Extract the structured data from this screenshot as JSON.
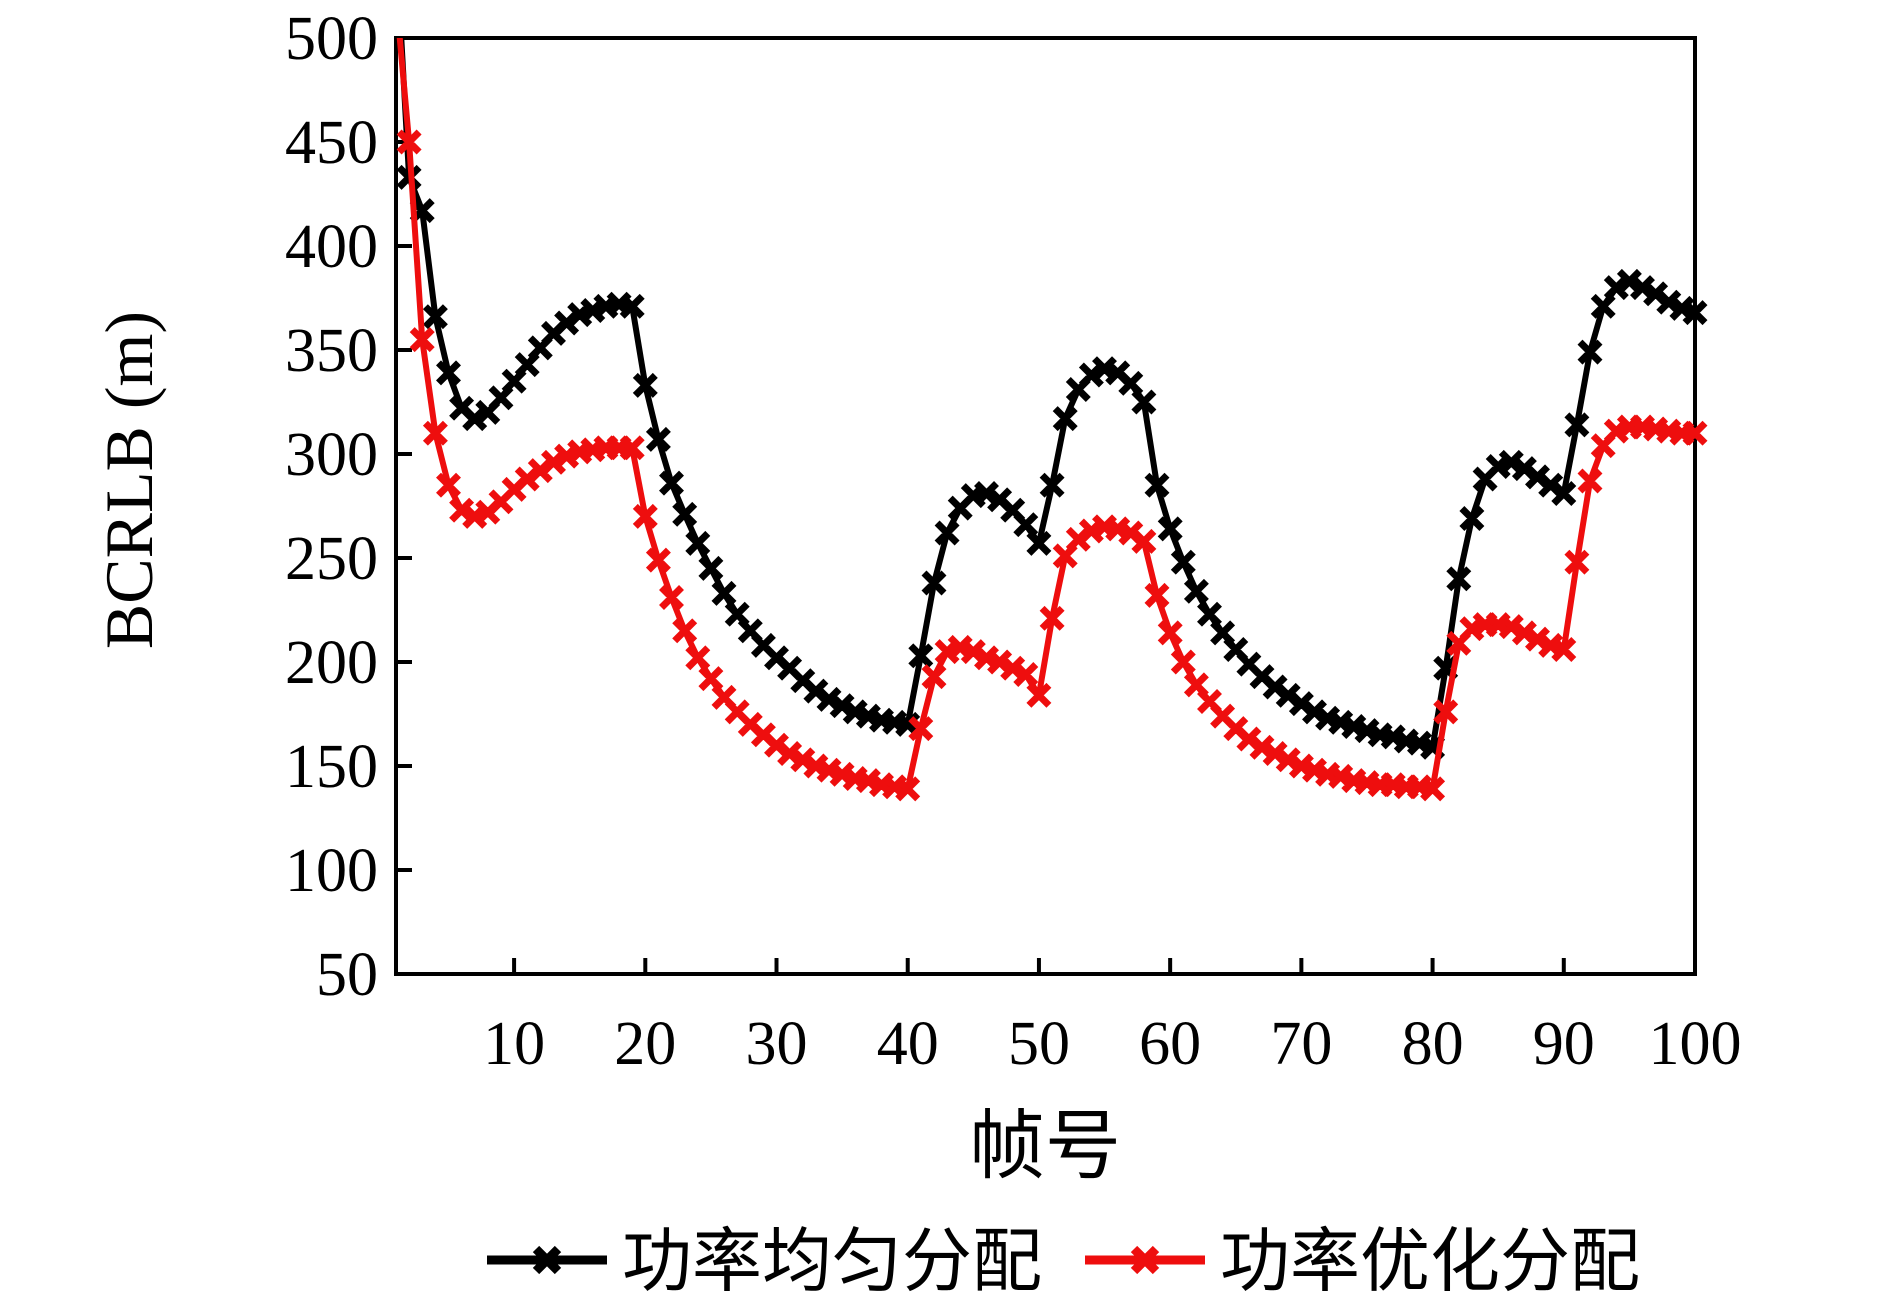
{
  "chart_data": {
    "type": "line",
    "title": "",
    "xlabel": "帧号",
    "ylabel": "BCRLB (m)",
    "xlim": [
      1,
      100
    ],
    "ylim": [
      50,
      500
    ],
    "x_ticks": [
      10,
      20,
      30,
      40,
      50,
      60,
      70,
      80,
      90,
      100
    ],
    "y_ticks": [
      50,
      100,
      150,
      200,
      250,
      300,
      350,
      400,
      450,
      500
    ],
    "grid": false,
    "legend_position": "bottom-center",
    "background_color": "#ffffff",
    "frame_color": "#000000",
    "x": {
      "start": 1,
      "step": 1,
      "count": 100
    },
    "series": [
      {
        "name": "功率均匀分配",
        "color": "#000000",
        "marker": "x",
        "values": [
          545,
          433,
          417,
          366,
          339,
          322,
          317,
          320,
          327,
          335,
          343,
          351,
          358,
          363,
          367,
          369,
          371,
          372,
          371,
          333,
          307,
          286,
          271,
          257,
          245,
          233,
          223,
          215,
          208,
          202,
          197,
          191,
          186,
          182,
          179,
          176,
          174,
          172,
          171,
          170,
          203,
          238,
          262,
          274,
          280,
          281,
          278,
          273,
          266,
          257,
          285,
          317,
          331,
          338,
          341,
          339,
          334,
          325,
          285,
          264,
          248,
          234,
          223,
          214,
          206,
          199,
          193,
          188,
          184,
          180,
          176,
          173,
          171,
          169,
          167,
          165,
          164,
          162,
          161,
          159,
          197,
          240,
          269,
          288,
          294,
          296,
          293,
          289,
          285,
          281,
          314,
          349,
          371,
          380,
          383,
          380,
          377,
          373,
          370,
          368
        ]
      },
      {
        "name": "功率优化分配",
        "color": "#ee0e0e",
        "marker": "x",
        "values": [
          520,
          450,
          355,
          310,
          285,
          273,
          270,
          272,
          277,
          283,
          288,
          292,
          296,
          299,
          301,
          302,
          303,
          303,
          303,
          270,
          249,
          231,
          215,
          202,
          192,
          183,
          176,
          170,
          165,
          160,
          156,
          153,
          150,
          148,
          146,
          144,
          143,
          141,
          140,
          139,
          168,
          193,
          205,
          207,
          205,
          202,
          200,
          197,
          194,
          184,
          221,
          251,
          259,
          263,
          265,
          264,
          262,
          258,
          232,
          214,
          200,
          189,
          181,
          174,
          168,
          163,
          159,
          156,
          153,
          150,
          148,
          146,
          145,
          143,
          142,
          141,
          141,
          140,
          140,
          139,
          176,
          209,
          216,
          218,
          218,
          217,
          214,
          211,
          208,
          206,
          248,
          287,
          304,
          311,
          313,
          313,
          312,
          311,
          310,
          310
        ]
      }
    ]
  }
}
